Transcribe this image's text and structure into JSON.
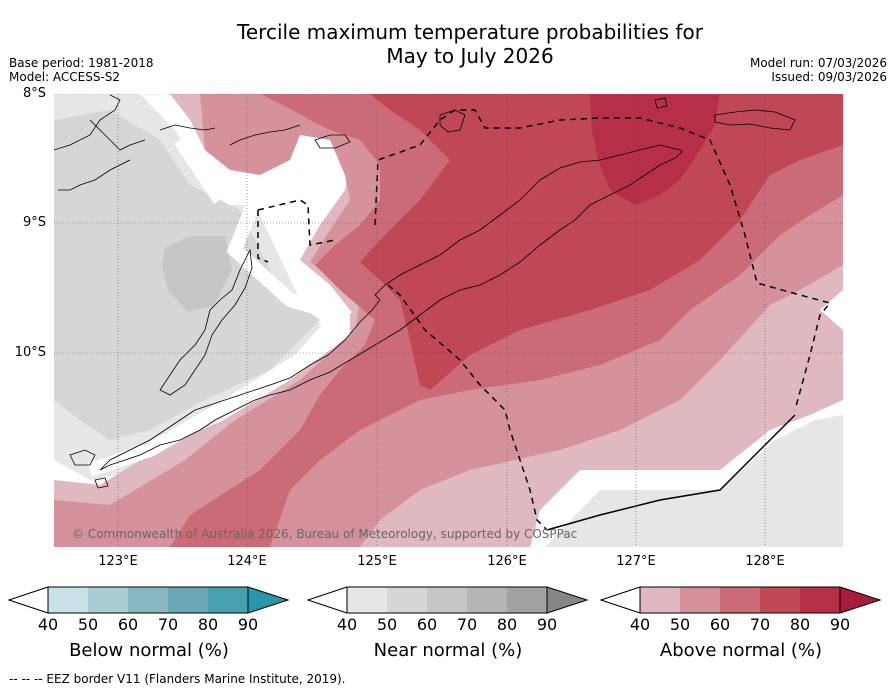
{
  "title": {
    "line1": "Tercile maximum temperature probabilities for",
    "line2": "May to July 2026"
  },
  "meta": {
    "base_period": "Base period: 1981-2018",
    "model": "Model: ACCESS-S2",
    "model_run": "Model run: 07/03/2026",
    "issued": "Issued: 09/03/2026"
  },
  "map": {
    "lat_labels": [
      "8°S",
      "9°S",
      "10°S"
    ],
    "lon_labels": [
      "123°E",
      "124°E",
      "125°E",
      "126°E",
      "127°E",
      "128°E"
    ],
    "copyright": "© Commonwealth of Australia 2026, Bureau of Meteorology, supported by COSPPac",
    "colors": {
      "near_40": "#e6e6e6",
      "near_50": "#d6d6d6",
      "near_60": "#c6c6c6",
      "above_40": "#e0b9c0",
      "above_50": "#d6929c",
      "above_60": "#cc6b78",
      "above_70": "#c04855",
      "above_80": "#b72f47",
      "coast": "#000000"
    }
  },
  "legends": {
    "below": {
      "title": "Below normal (%)",
      "ticks": [
        "40",
        "50",
        "60",
        "70",
        "80",
        "90"
      ],
      "colors": [
        "#c9e2e8",
        "#a9cbd2",
        "#89b8c2",
        "#68a8b6",
        "#47a0b0",
        "#2b96ab"
      ]
    },
    "near": {
      "title": "Near normal (%)",
      "ticks": [
        "40",
        "50",
        "60",
        "70",
        "80",
        "90"
      ],
      "colors": [
        "#e6e6e6",
        "#d6d6d6",
        "#c6c6c6",
        "#b5b5b5",
        "#a1a1a1",
        "#868686"
      ]
    },
    "above": {
      "title": "Above normal (%)",
      "ticks": [
        "40",
        "50",
        "60",
        "70",
        "80",
        "90"
      ],
      "colors": [
        "#e0b9c0",
        "#d6929c",
        "#cc6b78",
        "#c04855",
        "#b72f47",
        "#a81b3a"
      ]
    }
  },
  "footer": {
    "eez_legend": "-- -- -- EEZ border V11 (Flanders Marine Institute, 2019)."
  }
}
